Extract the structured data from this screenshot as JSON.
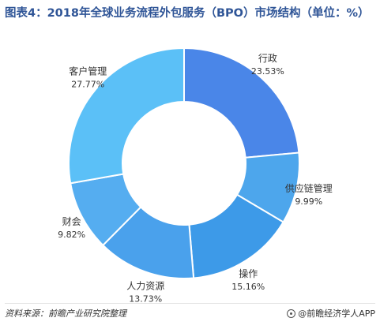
{
  "title": "图表4：2018年全球业务流程外包服务（BPO）市场结构（单位：%）",
  "footer": {
    "source": "资料来源：前瞻产业研究院整理",
    "brand": "@前瞻经济学人APP"
  },
  "chart_data": {
    "type": "pie",
    "style": "donut",
    "title": "图表4：2018年全球业务流程外包服务（BPO）市场结构（单位：%）",
    "unit": "%",
    "slices": [
      {
        "label": "行政",
        "value": 23.53,
        "value_label": "23.53%",
        "color": "#4a86e8"
      },
      {
        "label": "供应链管理",
        "value": 9.99,
        "value_label": "9.99%",
        "color": "#4da6ec"
      },
      {
        "label": "操作",
        "value": 15.16,
        "value_label": "15.16%",
        "color": "#3d9ae8"
      },
      {
        "label": "人力资源",
        "value": 13.73,
        "value_label": "13.73%",
        "color": "#4aa1ec"
      },
      {
        "label": "财会",
        "value": 9.82,
        "value_label": "9.82%",
        "color": "#55adf0"
      },
      {
        "label": "客户管理",
        "value": 27.77,
        "value_label": "27.77%",
        "color": "#5bc0f7"
      }
    ]
  }
}
